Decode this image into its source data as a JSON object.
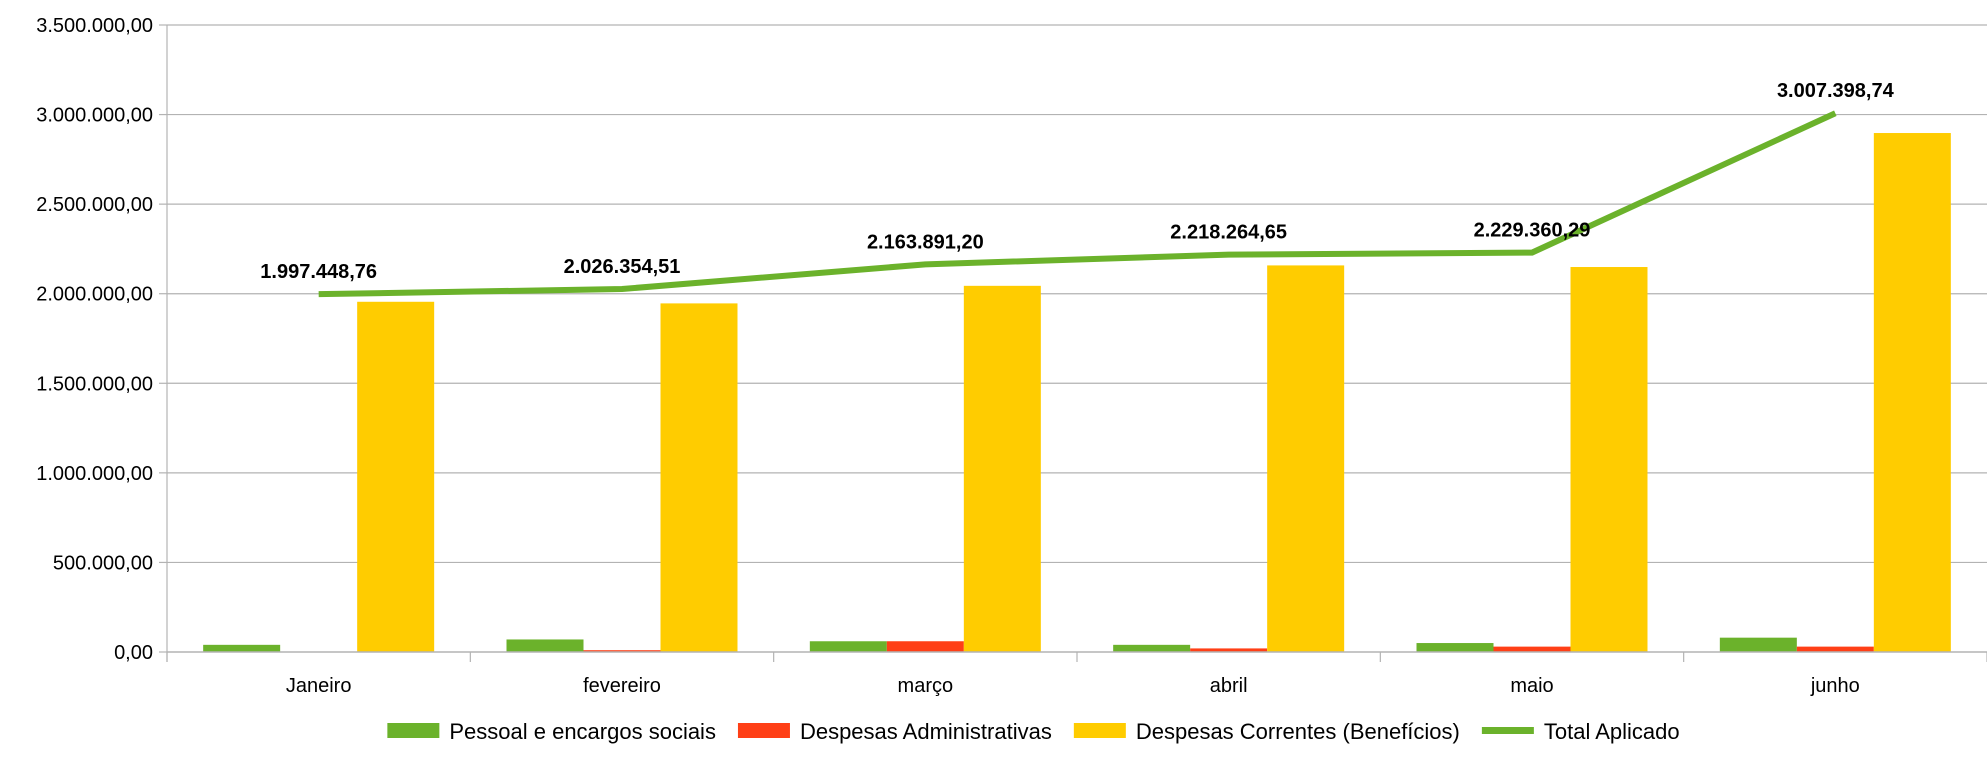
{
  "chart_data": {
    "type": "bar",
    "categories": [
      "Janeiro",
      "fevereiro",
      "março",
      "abril",
      "maio",
      "junho"
    ],
    "ylim": [
      0,
      3500000
    ],
    "yticks": [
      "0,00",
      "500.000,00",
      "1.000.000,00",
      "1.500.000,00",
      "2.000.000,00",
      "2.500.000,00",
      "3.000.000,00",
      "3.500.000,00"
    ],
    "ytick_values": [
      0,
      500000,
      1000000,
      1500000,
      2000000,
      2500000,
      3000000,
      3500000
    ],
    "grid": true,
    "legend_position": "bottom",
    "series": [
      {
        "name": "Pessoal e encargos sociais",
        "type": "bar",
        "color": "#6bb22b",
        "values": [
          40000,
          70000,
          60000,
          40000,
          50000,
          80000
        ]
      },
      {
        "name": "Despesas Administrativas",
        "type": "bar",
        "color": "#ff3f16",
        "values": [
          2000,
          10000,
          60000,
          20000,
          30000,
          30000
        ]
      },
      {
        "name": "Despesas Correntes (Benefícios)",
        "type": "bar",
        "color": "#ffcc00",
        "values": [
          1955000,
          1946000,
          2044000,
          2158000,
          2149000,
          2897000
        ]
      },
      {
        "name": "Total Aplicado",
        "type": "line",
        "color": "#6bb22b",
        "values": [
          1997448.76,
          2026354.51,
          2163891.2,
          2218264.65,
          2229360.29,
          3007398.74
        ]
      }
    ],
    "data_labels": [
      "1.997.448,76",
      "2.026.354,51",
      "2.163.891,20",
      "2.218.264,65",
      "2.229.360,29",
      "3.007.398,74"
    ]
  }
}
